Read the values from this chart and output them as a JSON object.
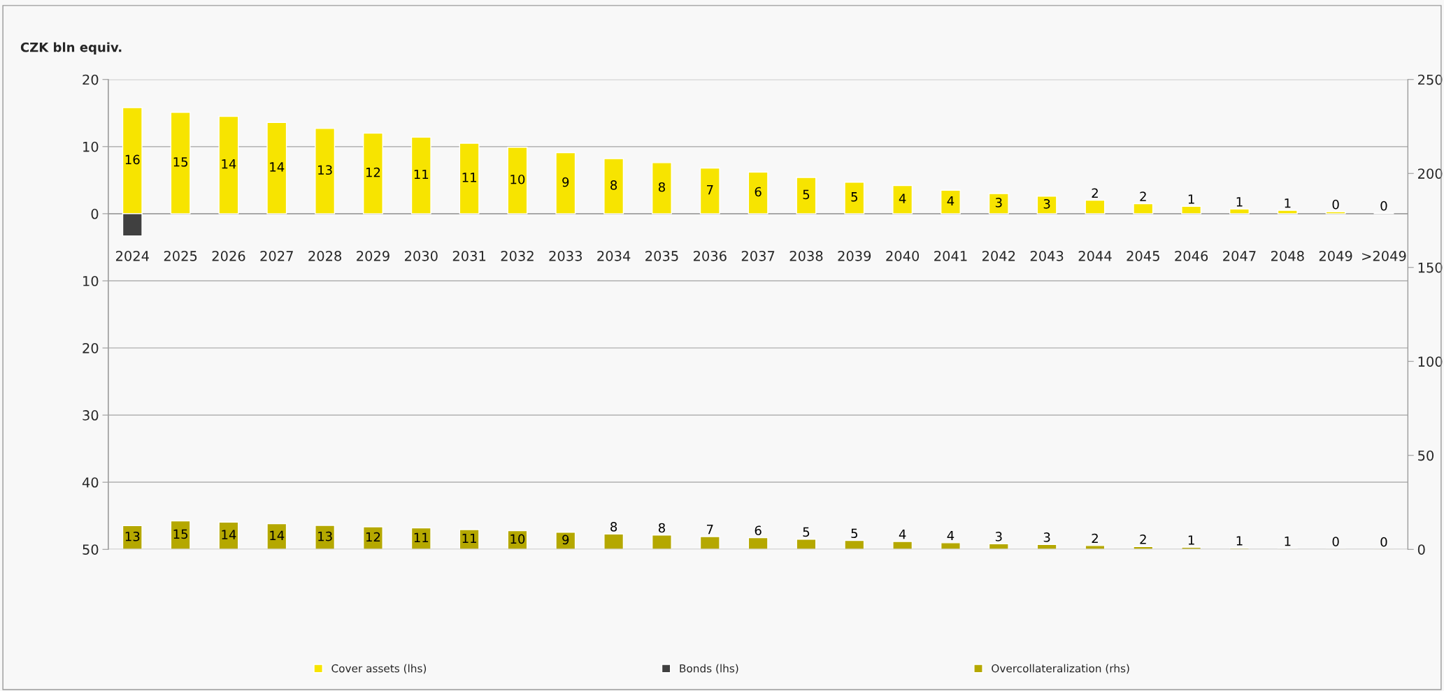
{
  "chart_data": {
    "type": "bar",
    "title": "CZK bln equiv.",
    "categories": [
      "2024",
      "2025",
      "2026",
      "2027",
      "2028",
      "2029",
      "2030",
      "2031",
      "2032",
      "2033",
      "2034",
      "2035",
      "2036",
      "2037",
      "2038",
      "2039",
      "2040",
      "2041",
      "2042",
      "2043",
      "2044",
      "2045",
      "2046",
      "2047",
      "2048",
      "2049",
      ">2049"
    ],
    "series": [
      {
        "name": "Cover assets (lhs)",
        "color": "#f7e400",
        "values": [
          15.8,
          15.1,
          14.5,
          13.6,
          12.7,
          12.0,
          11.4,
          10.5,
          9.9,
          9.1,
          8.2,
          7.6,
          6.8,
          6.2,
          5.4,
          4.7,
          4.2,
          3.5,
          3.0,
          2.6,
          2.0,
          1.5,
          1.1,
          0.7,
          0.5,
          0.3,
          0.1
        ],
        "value_labels": [
          "16",
          "15",
          "14",
          "14",
          "13",
          "12",
          "11",
          "11",
          "10",
          "9",
          "8",
          "8",
          "7",
          "6",
          "5",
          "5",
          "4",
          "4",
          "3",
          "3",
          "2",
          "2",
          "1",
          "1",
          "1",
          "0",
          "0"
        ]
      },
      {
        "name": "Bonds (lhs)",
        "color": "#404040",
        "values": [
          -3.3,
          null,
          null,
          null,
          null,
          null,
          null,
          null,
          null,
          null,
          null,
          null,
          null,
          null,
          null,
          null,
          null,
          null,
          null,
          null,
          null,
          null,
          null,
          null,
          null,
          null,
          null
        ]
      },
      {
        "name": "Overcollateralization (rhs)",
        "color": "#b5a800",
        "axis": "y2",
        "values": [
          12.6,
          15.1,
          14.5,
          13.6,
          12.7,
          12.0,
          11.4,
          10.5,
          9.9,
          9.1,
          8.2,
          7.6,
          6.8,
          6.2,
          5.4,
          4.7,
          4.2,
          3.5,
          3.0,
          2.6,
          2.0,
          1.5,
          1.1,
          0.7,
          0.5,
          0.3,
          0.1
        ],
        "value_labels": [
          "13",
          "15",
          "14",
          "14",
          "13",
          "12",
          "11",
          "11",
          "10",
          "9",
          "8",
          "8",
          "7",
          "6",
          "5",
          "5",
          "4",
          "4",
          "3",
          "3",
          "2",
          "2",
          "1",
          "1",
          "1",
          "0",
          "0"
        ]
      }
    ],
    "ylim": [
      -50,
      20
    ],
    "yticks": [
      {
        "value": -50,
        "label": "50"
      },
      {
        "value": -40,
        "label": "40"
      },
      {
        "value": -30,
        "label": "30"
      },
      {
        "value": -20,
        "label": "20"
      },
      {
        "value": -10,
        "label": "10"
      },
      0,
      10,
      20
    ],
    "y2lim": [
      0,
      250
    ],
    "y2ticks": [
      0,
      50,
      100,
      150,
      200,
      250
    ],
    "grid": "y",
    "legend": "bottom",
    "stacked": true
  }
}
